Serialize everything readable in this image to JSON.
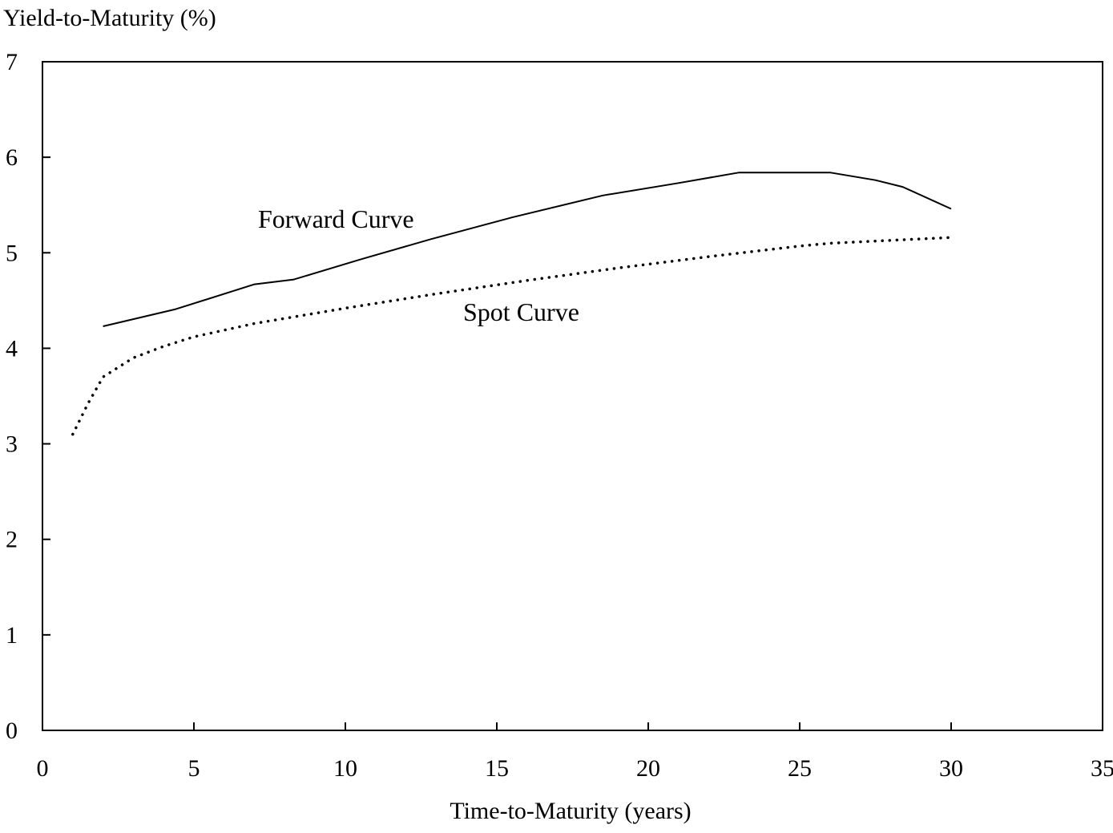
{
  "chart_data": {
    "type": "line",
    "title": "",
    "ylabel": "Yield-to-Maturity (%)",
    "xlabel": "Time-to-Maturity (years)",
    "xlim": [
      0,
      35
    ],
    "ylim": [
      0,
      7
    ],
    "xticks": [
      0,
      5,
      10,
      15,
      20,
      25,
      30,
      35
    ],
    "yticks": [
      0,
      1,
      2,
      3,
      4,
      5,
      6,
      7
    ],
    "grid": false,
    "legend": "none",
    "series": [
      {
        "name": "Forward Curve",
        "style": "solid",
        "color": "#000000",
        "x": [
          2,
          4.4,
          7,
          8.3,
          10.5,
          12.8,
          15.5,
          18.5,
          21,
          23,
          24.5,
          26,
          27.5,
          28.4,
          30
        ],
        "y": [
          4.23,
          4.41,
          4.67,
          4.72,
          4.93,
          5.14,
          5.37,
          5.6,
          5.73,
          5.84,
          5.84,
          5.84,
          5.76,
          5.69,
          5.46
        ]
      },
      {
        "name": "Spot Curve",
        "style": "dotted",
        "color": "#000000",
        "x": [
          1,
          1.5,
          2,
          3,
          4,
          5,
          7,
          10,
          13,
          16,
          19,
          22,
          25,
          26,
          28,
          30
        ],
        "y": [
          3.1,
          3.42,
          3.7,
          3.9,
          4.02,
          4.12,
          4.26,
          4.42,
          4.57,
          4.71,
          4.84,
          4.96,
          5.07,
          5.1,
          5.13,
          5.16
        ]
      }
    ]
  }
}
